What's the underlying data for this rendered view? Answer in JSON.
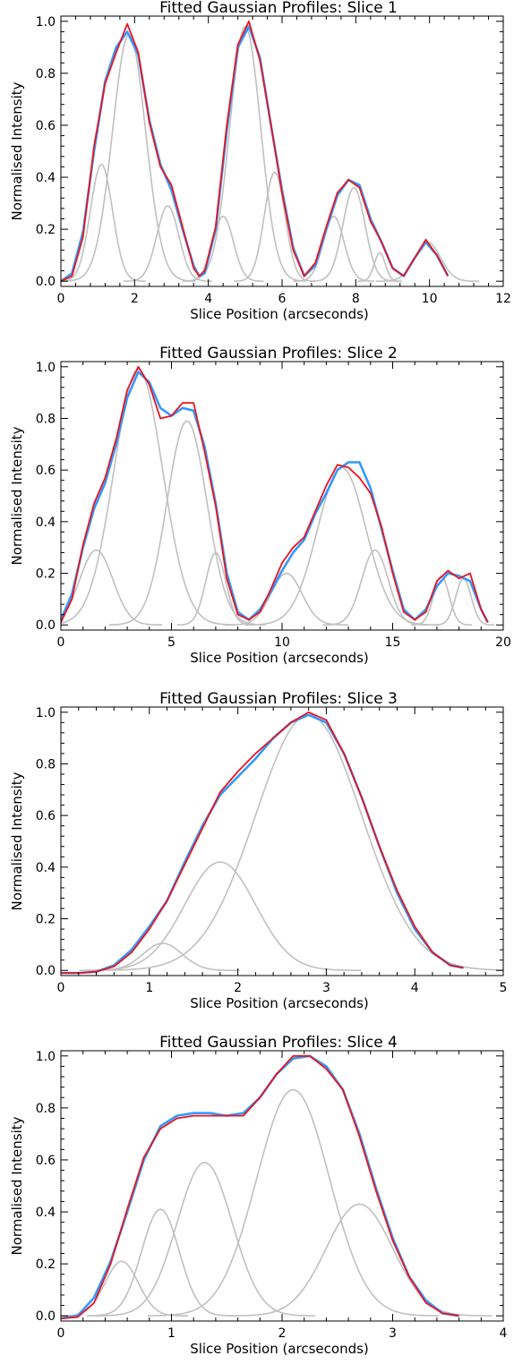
{
  "colors": {
    "observed": "#3399ff",
    "fit": "#e8141e",
    "components": "#c0c0c0"
  },
  "chart_data": [
    {
      "type": "line",
      "title": "Fitted Gaussian Profiles: Slice 1",
      "xlabel": "Slice Position (arcseconds)",
      "ylabel": "Normalised Intensity",
      "xlim": [
        0,
        12
      ],
      "ylim": [
        -0.02,
        1.02
      ],
      "xticks": [
        0,
        2,
        4,
        6,
        8,
        10,
        12
      ],
      "yticks": [
        0.0,
        0.2,
        0.4,
        0.6,
        0.8,
        1.0
      ],
      "components": [
        {
          "a": 0.45,
          "mu": 1.1,
          "sigma": 0.3
        },
        {
          "a": 0.95,
          "mu": 1.85,
          "sigma": 0.45
        },
        {
          "a": 0.29,
          "mu": 2.9,
          "sigma": 0.3
        },
        {
          "a": 0.25,
          "mu": 4.4,
          "sigma": 0.28
        },
        {
          "a": 0.98,
          "mu": 5.0,
          "sigma": 0.42
        },
        {
          "a": 0.42,
          "mu": 5.8,
          "sigma": 0.28
        },
        {
          "a": 0.25,
          "mu": 7.4,
          "sigma": 0.28
        },
        {
          "a": 0.36,
          "mu": 7.95,
          "sigma": 0.3
        },
        {
          "a": 0.11,
          "mu": 8.65,
          "sigma": 0.15
        },
        {
          "a": 0.15,
          "mu": 9.95,
          "sigma": 0.35
        }
      ],
      "observed": {
        "x": [
          0.0,
          0.3,
          0.6,
          0.9,
          1.2,
          1.5,
          1.8,
          2.1,
          2.4,
          2.7,
          3.0,
          3.3,
          3.6,
          3.75,
          3.9,
          4.2,
          4.5,
          4.8,
          5.1,
          5.4,
          5.7,
          6.0,
          6.3,
          6.6,
          6.9,
          7.2,
          7.5,
          7.8,
          8.1,
          8.4,
          8.7,
          9.0,
          9.3,
          9.6,
          9.9,
          10.2,
          10.5
        ],
        "y": [
          0.0,
          0.03,
          0.19,
          0.5,
          0.77,
          0.9,
          0.96,
          0.87,
          0.62,
          0.45,
          0.35,
          0.2,
          0.06,
          0.02,
          0.03,
          0.2,
          0.58,
          0.9,
          0.98,
          0.86,
          0.6,
          0.35,
          0.13,
          0.02,
          0.06,
          0.2,
          0.33,
          0.39,
          0.37,
          0.24,
          0.15,
          0.05,
          0.02,
          0.09,
          0.15,
          0.1,
          0.02
        ]
      },
      "fit": {
        "x": [
          0.0,
          0.3,
          0.6,
          0.9,
          1.2,
          1.5,
          1.8,
          2.1,
          2.4,
          2.7,
          3.0,
          3.3,
          3.6,
          3.75,
          3.9,
          4.2,
          4.5,
          4.8,
          5.1,
          5.4,
          5.7,
          6.0,
          6.3,
          6.6,
          6.9,
          7.2,
          7.5,
          7.8,
          8.1,
          8.4,
          8.7,
          9.0,
          9.3,
          9.6,
          9.9,
          10.2,
          10.5
        ],
        "y": [
          0.0,
          0.02,
          0.17,
          0.52,
          0.76,
          0.88,
          0.99,
          0.88,
          0.61,
          0.44,
          0.37,
          0.21,
          0.05,
          0.02,
          0.04,
          0.21,
          0.6,
          0.91,
          1.0,
          0.85,
          0.6,
          0.34,
          0.12,
          0.02,
          0.07,
          0.21,
          0.34,
          0.39,
          0.36,
          0.23,
          0.15,
          0.05,
          0.02,
          0.09,
          0.16,
          0.1,
          0.02
        ]
      }
    },
    {
      "type": "line",
      "title": "Fitted Gaussian Profiles: Slice 2",
      "xlabel": "Slice Position (arcseconds)",
      "ylabel": "Normalised Intensity",
      "xlim": [
        0,
        20
      ],
      "ylim": [
        -0.02,
        1.02
      ],
      "xticks": [
        0,
        5,
        10,
        15,
        20
      ],
      "yticks": [
        0.0,
        0.2,
        0.4,
        0.6,
        0.8,
        1.0
      ],
      "components": [
        {
          "a": 0.29,
          "mu": 1.6,
          "sigma": 0.75
        },
        {
          "a": 0.99,
          "mu": 3.5,
          "sigma": 1.1
        },
        {
          "a": 0.79,
          "mu": 5.7,
          "sigma": 0.9
        },
        {
          "a": 0.28,
          "mu": 7.0,
          "sigma": 0.45
        },
        {
          "a": 0.2,
          "mu": 10.2,
          "sigma": 0.7
        },
        {
          "a": 0.61,
          "mu": 12.7,
          "sigma": 1.1
        },
        {
          "a": 0.29,
          "mu": 14.2,
          "sigma": 0.6
        },
        {
          "a": 0.19,
          "mu": 17.2,
          "sigma": 0.35
        },
        {
          "a": 0.18,
          "mu": 18.2,
          "sigma": 0.35
        }
      ],
      "observed": {
        "x": [
          0.0,
          0.5,
          1.0,
          1.5,
          2.0,
          2.5,
          3.0,
          3.5,
          4.0,
          4.5,
          5.0,
          5.5,
          6.0,
          6.5,
          7.0,
          7.5,
          8.0,
          8.5,
          9.0,
          9.5,
          10.0,
          10.5,
          11.0,
          11.5,
          12.0,
          12.5,
          13.0,
          13.5,
          14.0,
          14.5,
          15.0,
          15.5,
          16.0,
          16.5,
          17.0,
          17.5,
          18.0,
          18.5,
          19.0,
          19.3
        ],
        "y": [
          0.02,
          0.12,
          0.3,
          0.45,
          0.55,
          0.7,
          0.88,
          0.98,
          0.94,
          0.84,
          0.81,
          0.84,
          0.83,
          0.69,
          0.47,
          0.2,
          0.05,
          0.02,
          0.06,
          0.13,
          0.21,
          0.28,
          0.33,
          0.43,
          0.51,
          0.6,
          0.63,
          0.63,
          0.53,
          0.37,
          0.21,
          0.06,
          0.02,
          0.06,
          0.15,
          0.2,
          0.19,
          0.17,
          0.06,
          0.01
        ]
      },
      "fit": {
        "x": [
          0.0,
          0.5,
          1.0,
          1.5,
          2.0,
          2.5,
          3.0,
          3.5,
          4.0,
          4.5,
          5.0,
          5.5,
          6.0,
          6.5,
          7.0,
          7.5,
          8.0,
          8.5,
          9.0,
          9.5,
          10.0,
          10.5,
          11.0,
          11.5,
          12.0,
          12.5,
          13.0,
          13.5,
          14.0,
          14.5,
          15.0,
          15.5,
          16.0,
          16.5,
          17.0,
          17.5,
          18.0,
          18.5,
          19.0,
          19.3
        ],
        "y": [
          0.01,
          0.1,
          0.31,
          0.47,
          0.57,
          0.72,
          0.91,
          1.0,
          0.93,
          0.8,
          0.81,
          0.86,
          0.86,
          0.67,
          0.46,
          0.18,
          0.04,
          0.02,
          0.05,
          0.14,
          0.24,
          0.3,
          0.34,
          0.44,
          0.54,
          0.62,
          0.61,
          0.57,
          0.51,
          0.38,
          0.2,
          0.05,
          0.02,
          0.05,
          0.17,
          0.21,
          0.18,
          0.2,
          0.06,
          0.01
        ]
      }
    },
    {
      "type": "line",
      "title": "Fitted Gaussian Profiles: Slice 3",
      "xlabel": "Slice Position (arcseconds)",
      "ylabel": "Normalised Intensity",
      "xlim": [
        0,
        5
      ],
      "ylim": [
        -0.02,
        1.02
      ],
      "xticks": [
        0,
        1,
        2,
        3,
        4,
        5
      ],
      "yticks": [
        0.0,
        0.2,
        0.4,
        0.6,
        0.8,
        1.0
      ],
      "components": [
        {
          "a": 0.105,
          "mu": 1.15,
          "sigma": 0.22
        },
        {
          "a": 0.42,
          "mu": 1.8,
          "sigma": 0.4
        },
        {
          "a": 0.99,
          "mu": 2.8,
          "sigma": 0.6
        }
      ],
      "observed": {
        "x": [
          0.0,
          0.2,
          0.4,
          0.6,
          0.8,
          1.0,
          1.2,
          1.4,
          1.6,
          1.8,
          2.0,
          2.2,
          2.4,
          2.6,
          2.8,
          3.0,
          3.2,
          3.4,
          3.6,
          3.8,
          4.0,
          4.2,
          4.4,
          4.55
        ],
        "y": [
          -0.01,
          -0.01,
          -0.005,
          0.02,
          0.08,
          0.17,
          0.27,
          0.42,
          0.56,
          0.68,
          0.75,
          0.82,
          0.9,
          0.96,
          0.99,
          0.96,
          0.84,
          0.67,
          0.48,
          0.3,
          0.16,
          0.07,
          0.02,
          0.01
        ]
      },
      "fit": {
        "x": [
          0.0,
          0.2,
          0.4,
          0.6,
          0.8,
          1.0,
          1.2,
          1.4,
          1.6,
          1.8,
          2.0,
          2.2,
          2.4,
          2.6,
          2.8,
          3.0,
          3.2,
          3.4,
          3.6,
          3.8,
          4.0,
          4.2,
          4.4,
          4.55
        ],
        "y": [
          -0.01,
          -0.01,
          -0.005,
          0.015,
          0.07,
          0.16,
          0.27,
          0.41,
          0.55,
          0.69,
          0.77,
          0.84,
          0.9,
          0.96,
          1.0,
          0.97,
          0.84,
          0.67,
          0.48,
          0.31,
          0.17,
          0.07,
          0.02,
          0.01
        ]
      }
    },
    {
      "type": "line",
      "title": "Fitted Gaussian Profiles: Slice 4",
      "xlabel": "Slice Position (arcseconds)",
      "ylabel": "Normalised Intensity",
      "xlim": [
        0,
        4
      ],
      "ylim": [
        -0.02,
        1.02
      ],
      "xticks": [
        0,
        1,
        2,
        3,
        4
      ],
      "yticks": [
        0.0,
        0.2,
        0.4,
        0.6,
        0.8,
        1.0
      ],
      "components": [
        {
          "a": 0.21,
          "mu": 0.55,
          "sigma": 0.15
        },
        {
          "a": 0.41,
          "mu": 0.9,
          "sigma": 0.17
        },
        {
          "a": 0.59,
          "mu": 1.3,
          "sigma": 0.25
        },
        {
          "a": 0.87,
          "mu": 2.1,
          "sigma": 0.33
        },
        {
          "a": 0.43,
          "mu": 2.7,
          "sigma": 0.3
        }
      ],
      "observed": {
        "x": [
          0.0,
          0.15,
          0.3,
          0.45,
          0.6,
          0.75,
          0.9,
          1.05,
          1.2,
          1.35,
          1.5,
          1.65,
          1.8,
          1.95,
          2.1,
          2.25,
          2.4,
          2.55,
          2.7,
          2.85,
          3.0,
          3.15,
          3.3,
          3.45,
          3.6
        ],
        "y": [
          -0.01,
          0.0,
          0.07,
          0.21,
          0.4,
          0.6,
          0.73,
          0.77,
          0.78,
          0.78,
          0.77,
          0.78,
          0.84,
          0.93,
          0.99,
          1.0,
          0.96,
          0.87,
          0.7,
          0.49,
          0.3,
          0.15,
          0.06,
          0.01,
          0.0
        ]
      },
      "fit": {
        "x": [
          0.0,
          0.15,
          0.3,
          0.45,
          0.6,
          0.75,
          0.9,
          1.05,
          1.2,
          1.35,
          1.5,
          1.65,
          1.8,
          1.95,
          2.1,
          2.25,
          2.4,
          2.55,
          2.7,
          2.85,
          3.0,
          3.15,
          3.3,
          3.45,
          3.6
        ],
        "y": [
          -0.01,
          -0.005,
          0.05,
          0.2,
          0.41,
          0.61,
          0.72,
          0.76,
          0.77,
          0.77,
          0.77,
          0.77,
          0.84,
          0.93,
          1.0,
          1.0,
          0.95,
          0.87,
          0.69,
          0.48,
          0.29,
          0.15,
          0.05,
          0.01,
          0.0
        ]
      }
    }
  ]
}
